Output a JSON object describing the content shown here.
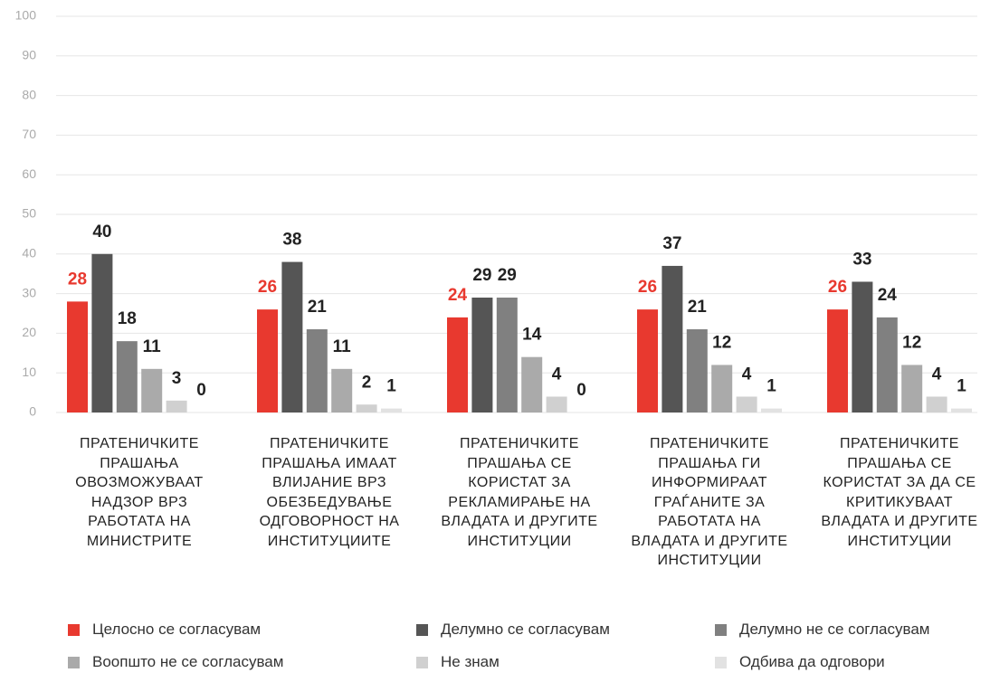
{
  "chart_data": {
    "type": "bar",
    "categories": [
      "ПРАТЕНИЧКИТЕ ПРАШАЊА ОВОЗМОЖУВААТ НАДЗОР ВРЗ РАБОТАТА НА МИНИСТРИТЕ",
      "ПРАТЕНИЧКИТЕ ПРАШАЊА ИМААТ ВЛИЈАНИЕ ВРЗ ОБЕЗБЕДУВАЊЕ ОДГОВОРНОСТ НА ИНСТИТУЦИИТЕ",
      "ПРАТЕНИЧКИТЕ ПРАШАЊА СЕ КОРИСТАТ ЗА РЕКЛАМИРАЊЕ НА ВЛАДАТА И ДРУГИТЕ ИНСТИТУЦИИ",
      "ПРАТЕНИЧКИТЕ ПРАШАЊА ГИ ИНФОРМИРААТ ГРАЃАНИТЕ ЗА РАБОТАТА НА ВЛАДАТА И ДРУГИТЕ ИНСТИТУЦИИ",
      "ПРАТЕНИЧКИТЕ ПРАШАЊА СЕ КОРИСТАТ ЗА ДА СЕ КРИТИКУВААТ ВЛАДАТА И ДРУГИТЕ ИНСТИТУЦИИ"
    ],
    "series": [
      {
        "name": "Целосно се согласувам",
        "color": "#e8392f",
        "values": [
          28,
          26,
          24,
          26,
          26
        ]
      },
      {
        "name": "Делумно се согласувам",
        "color": "#555555",
        "values": [
          40,
          38,
          29,
          37,
          33
        ]
      },
      {
        "name": "Делумно не се согласувам",
        "color": "#808080",
        "values": [
          18,
          21,
          29,
          21,
          24
        ]
      },
      {
        "name": "Воопшто не се согласувам",
        "color": "#aaaaaa",
        "values": [
          11,
          11,
          14,
          12,
          12
        ]
      },
      {
        "name": "Не знам",
        "color": "#d0d0d0",
        "values": [
          3,
          2,
          4,
          4,
          4
        ]
      },
      {
        "name": "Одбива да одговори",
        "color": "#e2e2e2",
        "values": [
          0,
          1,
          0,
          1,
          1
        ]
      }
    ],
    "ylim": [
      0,
      100
    ],
    "yticks": [
      0,
      10,
      20,
      30,
      40,
      50,
      60,
      70,
      80,
      90,
      100
    ],
    "grid": true,
    "legend": "bottom"
  }
}
